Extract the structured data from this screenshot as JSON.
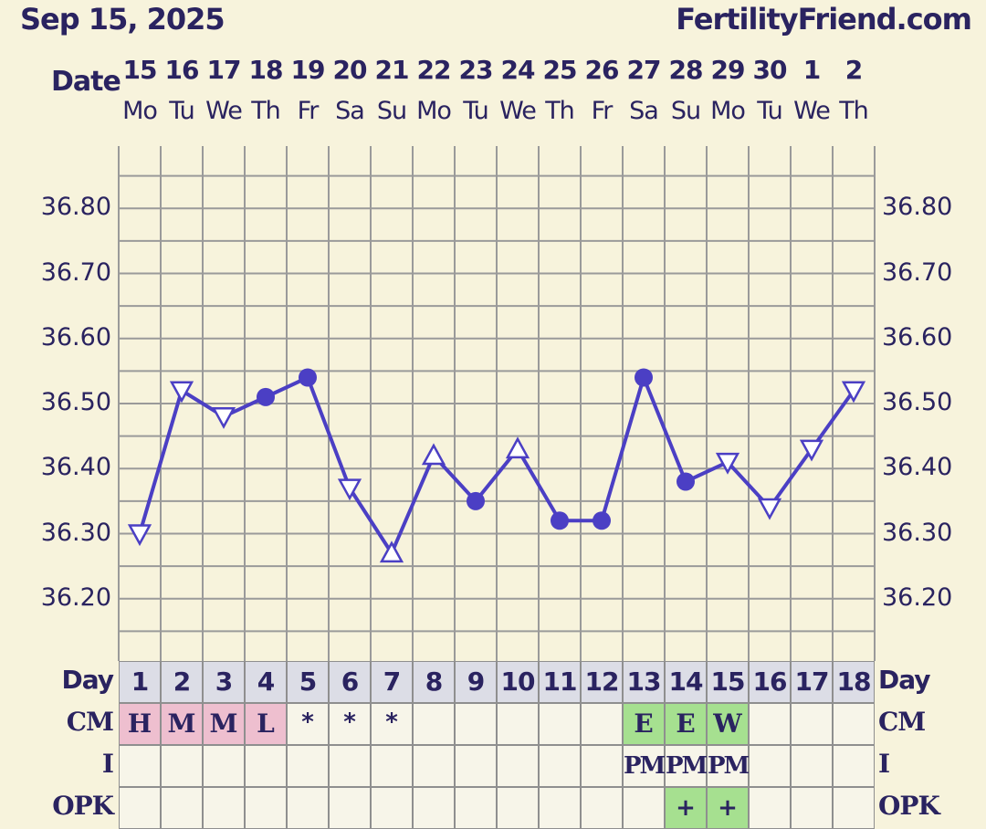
{
  "header": {
    "date": "Sep 15, 2025",
    "site": "FertilityFriend.com",
    "date_label": "Date"
  },
  "colors": {
    "line": "#4b3fc4",
    "grid": "#9a9a9a",
    "background": "#f7f3dc",
    "cm_pink": "#eebfcf",
    "cm_green": "#a6e090"
  },
  "chart_data": {
    "type": "line",
    "x": [
      "15",
      "16",
      "17",
      "18",
      "19",
      "20",
      "21",
      "22",
      "23",
      "24",
      "25",
      "26",
      "27",
      "28",
      "29",
      "30",
      "1",
      "2"
    ],
    "weekdays": [
      "Mo",
      "Tu",
      "We",
      "Th",
      "Fr",
      "Sa",
      "Su",
      "Mo",
      "Tu",
      "We",
      "Th",
      "Fr",
      "Sa",
      "Su",
      "Mo",
      "Tu",
      "We",
      "Th"
    ],
    "cycle_days": [
      "1",
      "2",
      "3",
      "4",
      "5",
      "6",
      "7",
      "8",
      "9",
      "10",
      "11",
      "12",
      "13",
      "14",
      "15",
      "16",
      "17",
      "18"
    ],
    "series": [
      {
        "values": [
          36.3,
          36.52,
          36.48,
          36.51,
          36.54,
          36.37,
          36.27,
          36.42,
          36.35,
          36.43,
          36.32,
          36.32,
          36.54,
          36.38,
          36.41,
          36.34,
          36.43,
          36.52
        ],
        "markers": [
          "tri-down",
          "tri-down",
          "tri-down",
          "dot",
          "dot",
          "tri-down",
          "tri-up",
          "tri-up",
          "dot",
          "tri-up",
          "dot",
          "dot",
          "dot",
          "dot",
          "tri-down",
          "tri-down",
          "tri-down",
          "tri-down"
        ]
      }
    ],
    "yticks": [
      "36.80",
      "36.70",
      "36.60",
      "36.50",
      "36.40",
      "36.30",
      "36.20"
    ],
    "ylim": [
      36.14,
      36.88
    ],
    "grid": true
  },
  "rows": {
    "day_label": "Day",
    "cm_label": "CM",
    "i_label": "I",
    "opk_label": "OPK",
    "cm": [
      "H",
      "M",
      "M",
      "L",
      "*",
      "*",
      "*",
      "",
      "",
      "",
      "",
      "",
      "E",
      "E",
      "W",
      "",
      "",
      ""
    ],
    "cm_colors": [
      "pink",
      "pink",
      "pink",
      "pink",
      "",
      "",
      "",
      "",
      "",
      "",
      "",
      "",
      "green",
      "green",
      "green",
      "",
      "",
      ""
    ],
    "i": [
      "",
      "",
      "",
      "",
      "",
      "",
      "",
      "",
      "",
      "",
      "",
      "",
      "PM",
      "PM",
      "PM",
      "",
      "",
      ""
    ],
    "opk": [
      "",
      "",
      "",
      "",
      "",
      "",
      "",
      "",
      "",
      "",
      "",
      "",
      "",
      "+",
      "+",
      "",
      "",
      ""
    ]
  }
}
